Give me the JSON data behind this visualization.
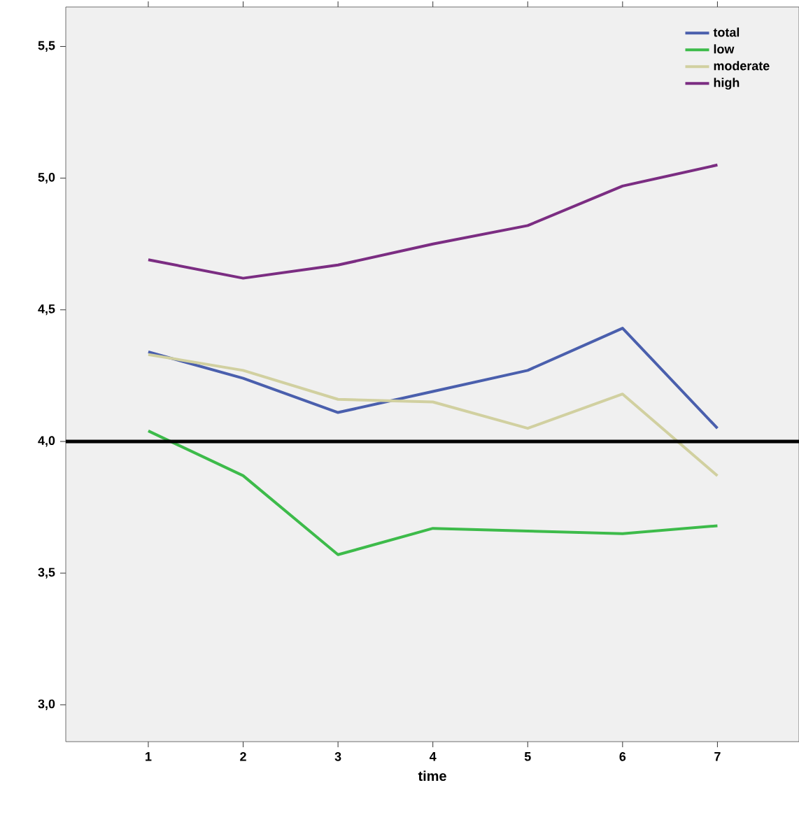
{
  "chart_data": {
    "type": "line",
    "xlabel": "time",
    "x": [
      1,
      2,
      3,
      4,
      5,
      6,
      7
    ],
    "xlim": [
      0.13,
      7.86
    ],
    "xticks": [
      1,
      2,
      3,
      4,
      5,
      6,
      7
    ],
    "ylim": [
      2.86,
      5.65
    ],
    "yticks": [
      {
        "value": 3.0,
        "label": "3,0"
      },
      {
        "value": 3.5,
        "label": "3,5"
      },
      {
        "value": 4.0,
        "label": "4,0"
      },
      {
        "value": 4.5,
        "label": "4,5"
      },
      {
        "value": 5.0,
        "label": "5,0"
      },
      {
        "value": 5.5,
        "label": "5,5"
      }
    ],
    "series": [
      {
        "name": "total",
        "color": "#4a5fad",
        "values": [
          4.34,
          4.24,
          4.11,
          4.19,
          4.27,
          4.43,
          4.05
        ]
      },
      {
        "name": "low",
        "color": "#3dbb4a",
        "values": [
          4.04,
          3.87,
          3.57,
          3.67,
          3.66,
          3.65,
          3.68
        ]
      },
      {
        "name": "moderate",
        "color": "#d1d0a0",
        "values": [
          4.33,
          4.27,
          4.16,
          4.15,
          4.05,
          4.18,
          3.87
        ]
      },
      {
        "name": "high",
        "color": "#7b2d82",
        "values": [
          4.69,
          4.62,
          4.67,
          4.75,
          4.82,
          4.97,
          5.05
        ]
      }
    ],
    "ref_lines": [
      {
        "axis": "y",
        "value": 4.0,
        "color": "#000000"
      }
    ],
    "legend": "top right",
    "grid": false,
    "marker": "none",
    "line_style": "solid"
  }
}
